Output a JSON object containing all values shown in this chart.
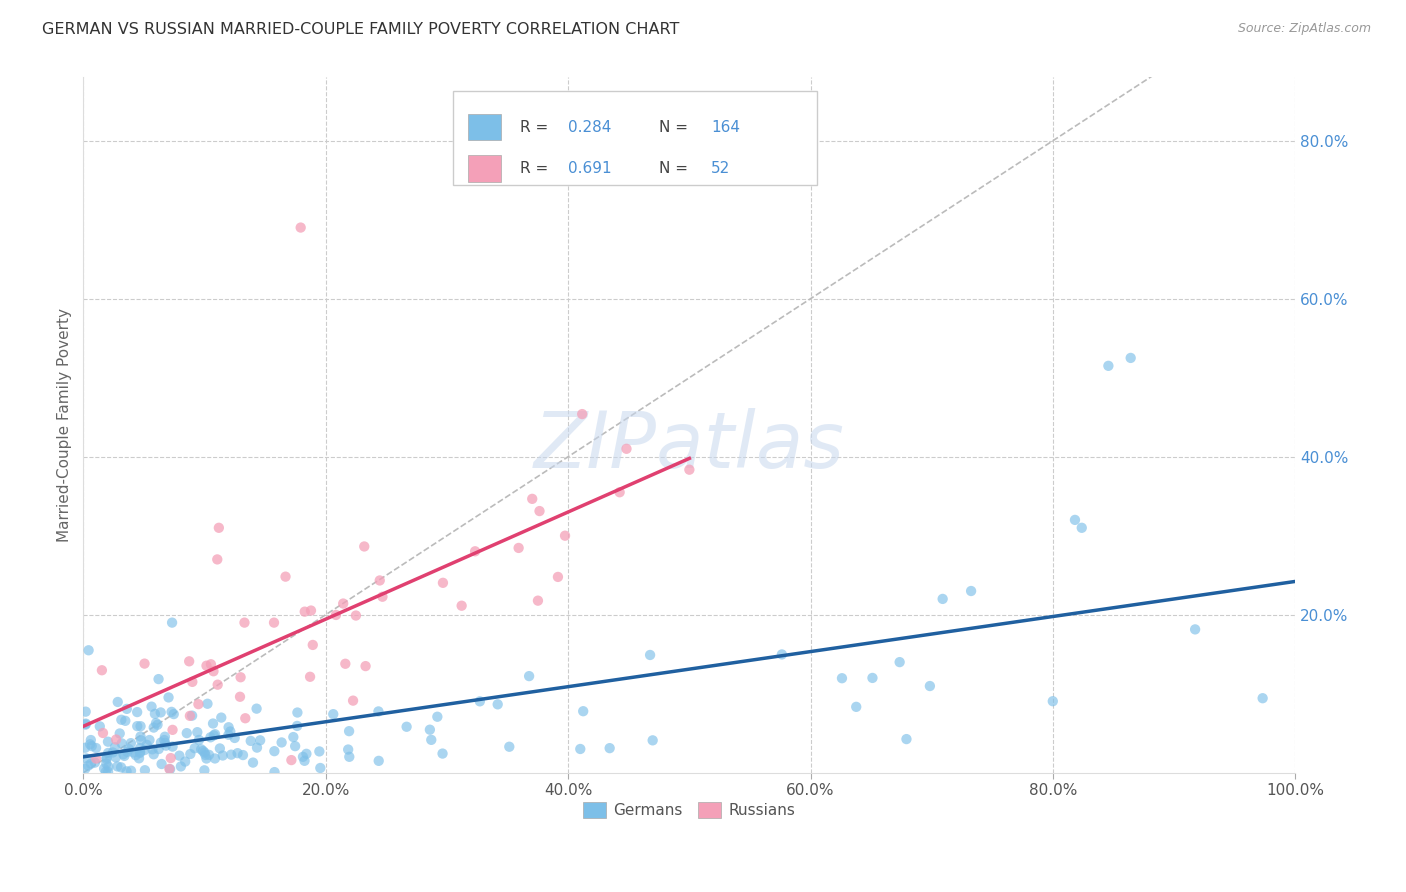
{
  "title": "GERMAN VS RUSSIAN MARRIED-COUPLE FAMILY POVERTY CORRELATION CHART",
  "source": "Source: ZipAtlas.com",
  "ylabel": "Married-Couple Family Poverty",
  "xlim": [
    0,
    1.0
  ],
  "ylim": [
    0,
    0.88
  ],
  "xtick_labels": [
    "0.0%",
    "20.0%",
    "40.0%",
    "60.0%",
    "80.0%",
    "100.0%"
  ],
  "xtick_vals": [
    0,
    0.2,
    0.4,
    0.6,
    0.8,
    1.0
  ],
  "ytick_labels": [
    "20.0%",
    "40.0%",
    "60.0%",
    "80.0%"
  ],
  "ytick_vals": [
    0.2,
    0.4,
    0.6,
    0.8
  ],
  "german_color": "#7dbfe8",
  "russian_color": "#f4a0b8",
  "german_R": 0.284,
  "german_N": 164,
  "russian_R": 0.691,
  "russian_N": 52,
  "watermark": "ZIPatlas",
  "diagonal_line_color": "#bbbbbb",
  "german_line_color": "#2060a0",
  "russian_line_color": "#e04070",
  "background_color": "#ffffff",
  "grid_color": "#cccccc",
  "title_color": "#333333",
  "axis_label_color": "#666666",
  "right_ytick_color": "#4a8fd4",
  "legend_text_color": "#4a8fd4",
  "seed": 7
}
